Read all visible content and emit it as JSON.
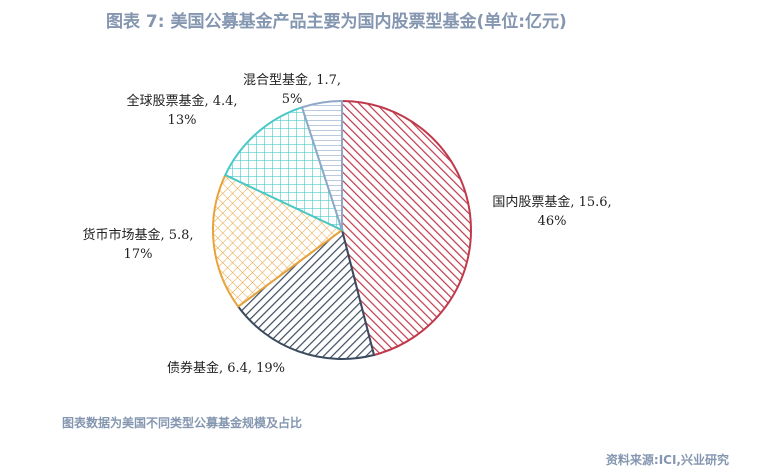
{
  "title": "图表 7:  美国公募基金产品主要为国内股票型基金(单位:亿元)",
  "note": "图表数据为美国不同类型公募基金规模及占比",
  "source": "资料来源:ICI,兴业研究",
  "chart_data": {
    "type": "pie",
    "slices": [
      {
        "name": "国内股票基金",
        "value": 15.6,
        "pct": "46%",
        "label": "国内股票基金, 15.6,",
        "label2": "46%",
        "color": "#c0394b",
        "pattern": "diag-right"
      },
      {
        "name": "债券基金",
        "value": 6.4,
        "pct": "19%",
        "label": "债券基金, 6.4, 19%",
        "label2": "",
        "color": "#3b4a5e",
        "pattern": "diag-left"
      },
      {
        "name": "货币市场基金",
        "value": 5.8,
        "pct": "17%",
        "label": "货币市场基金, 5.8,",
        "label2": "17%",
        "color": "#e8a33a",
        "pattern": "diag-cross"
      },
      {
        "name": "全球股票基金",
        "value": 4.4,
        "pct": "13%",
        "label": "全球股票基金, 4.4,",
        "label2": "13%",
        "color": "#48c8c8",
        "pattern": "grid"
      },
      {
        "name": "混合型基金",
        "value": 1.7,
        "pct": "5%",
        "label": "混合型基金, 1.7,",
        "label2": "5%",
        "color": "#8fa8c8",
        "pattern": "horizontal"
      }
    ]
  }
}
